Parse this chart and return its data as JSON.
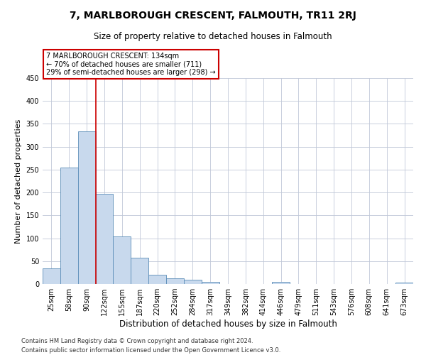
{
  "title": "7, MARLBOROUGH CRESCENT, FALMOUTH, TR11 2RJ",
  "subtitle": "Size of property relative to detached houses in Falmouth",
  "xlabel": "Distribution of detached houses by size in Falmouth",
  "ylabel": "Number of detached properties",
  "footer_line1": "Contains HM Land Registry data © Crown copyright and database right 2024.",
  "footer_line2": "Contains public sector information licensed under the Open Government Licence v3.0.",
  "bin_labels": [
    "25sqm",
    "58sqm",
    "90sqm",
    "122sqm",
    "155sqm",
    "187sqm",
    "220sqm",
    "252sqm",
    "284sqm",
    "317sqm",
    "349sqm",
    "382sqm",
    "414sqm",
    "446sqm",
    "479sqm",
    "511sqm",
    "543sqm",
    "576sqm",
    "608sqm",
    "641sqm",
    "673sqm"
  ],
  "bar_values": [
    34,
    254,
    334,
    197,
    104,
    57,
    20,
    12,
    9,
    5,
    0,
    0,
    0,
    4,
    0,
    0,
    0,
    0,
    0,
    0,
    3
  ],
  "bar_color": "#c8d9ed",
  "bar_edge_color": "#5b8db8",
  "grid_color": "#c0c8d8",
  "property_line_color": "#cc0000",
  "annotation_text": "7 MARLBOROUGH CRESCENT: 134sqm\n← 70% of detached houses are smaller (711)\n29% of semi-detached houses are larger (298) →",
  "annotation_box_color": "#ffffff",
  "annotation_box_edge": "#cc0000",
  "ylim": [
    0,
    450
  ],
  "yticks": [
    0,
    50,
    100,
    150,
    200,
    250,
    300,
    350,
    400,
    450
  ],
  "title_fontsize": 10,
  "subtitle_fontsize": 8.5,
  "ylabel_fontsize": 8,
  "xlabel_fontsize": 8.5,
  "tick_fontsize": 7,
  "annotation_fontsize": 7,
  "footer_fontsize": 6
}
